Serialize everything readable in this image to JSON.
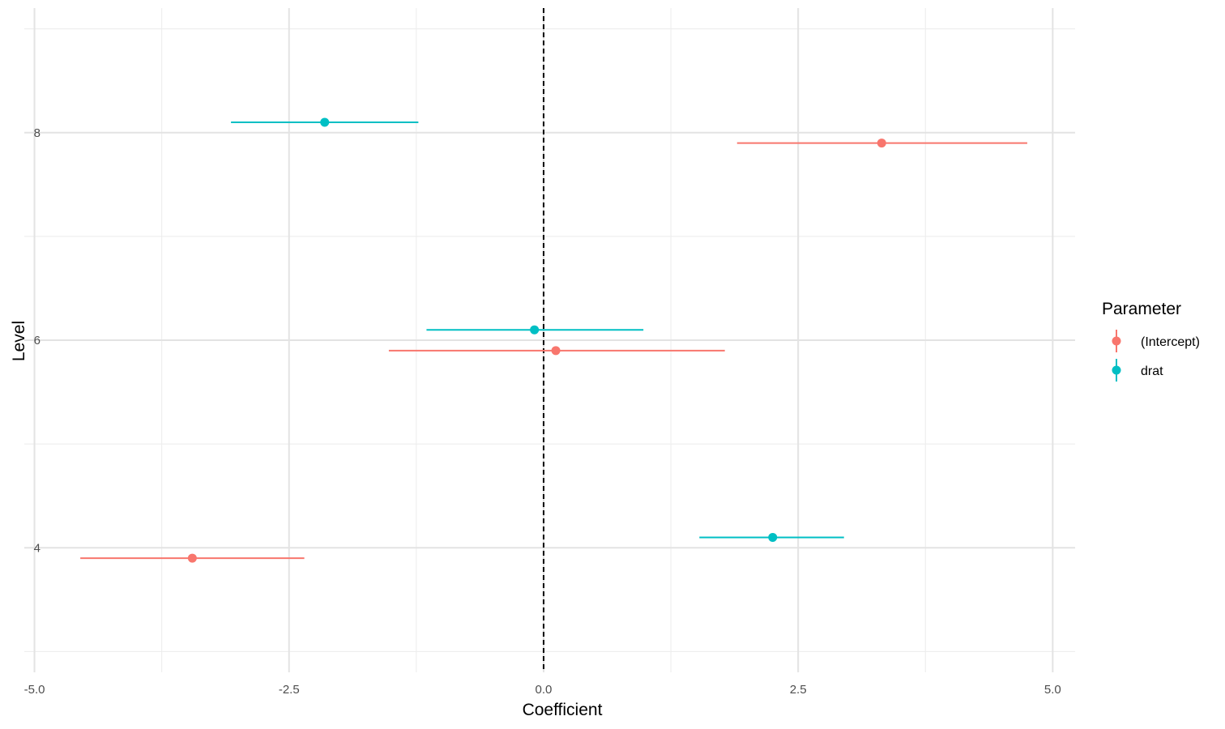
{
  "chart_data": {
    "type": "scatter",
    "subtype": "coefficient-interval",
    "xlabel": "Coefficient",
    "ylabel": "Level",
    "xlim": [
      -5.1,
      5.22
    ],
    "ylim": [
      2.8,
      9.2
    ],
    "x_ticks": [
      -5.0,
      -2.5,
      0.0,
      2.5,
      5.0
    ],
    "x_tick_labels": [
      "-5.0",
      "-2.5",
      "0.0",
      "2.5",
      "5.0"
    ],
    "y_ticks": [
      4,
      6,
      8
    ],
    "y_tick_labels": [
      "4",
      "6",
      "8"
    ],
    "grid": true,
    "reference_line": {
      "x": 0,
      "style": "dashed",
      "color": "#000000"
    },
    "legend": {
      "title": "Parameter",
      "position": "right"
    },
    "series": [
      {
        "name": "(Intercept)",
        "color": "#F8766D",
        "points": [
          {
            "level": 4,
            "estimate": -3.45,
            "low": -4.55,
            "high": -2.35
          },
          {
            "level": 6,
            "estimate": 0.12,
            "low": -1.52,
            "high": 1.78
          },
          {
            "level": 8,
            "estimate": 3.32,
            "low": 1.9,
            "high": 4.75
          }
        ]
      },
      {
        "name": "drat",
        "color": "#00BFC4",
        "points": [
          {
            "level": 4,
            "estimate": 2.25,
            "low": 1.53,
            "high": 2.95
          },
          {
            "level": 6,
            "estimate": -0.09,
            "low": -1.15,
            "high": 0.98
          },
          {
            "level": 8,
            "estimate": -2.15,
            "low": -3.07,
            "high": -1.23
          }
        ]
      }
    ]
  }
}
